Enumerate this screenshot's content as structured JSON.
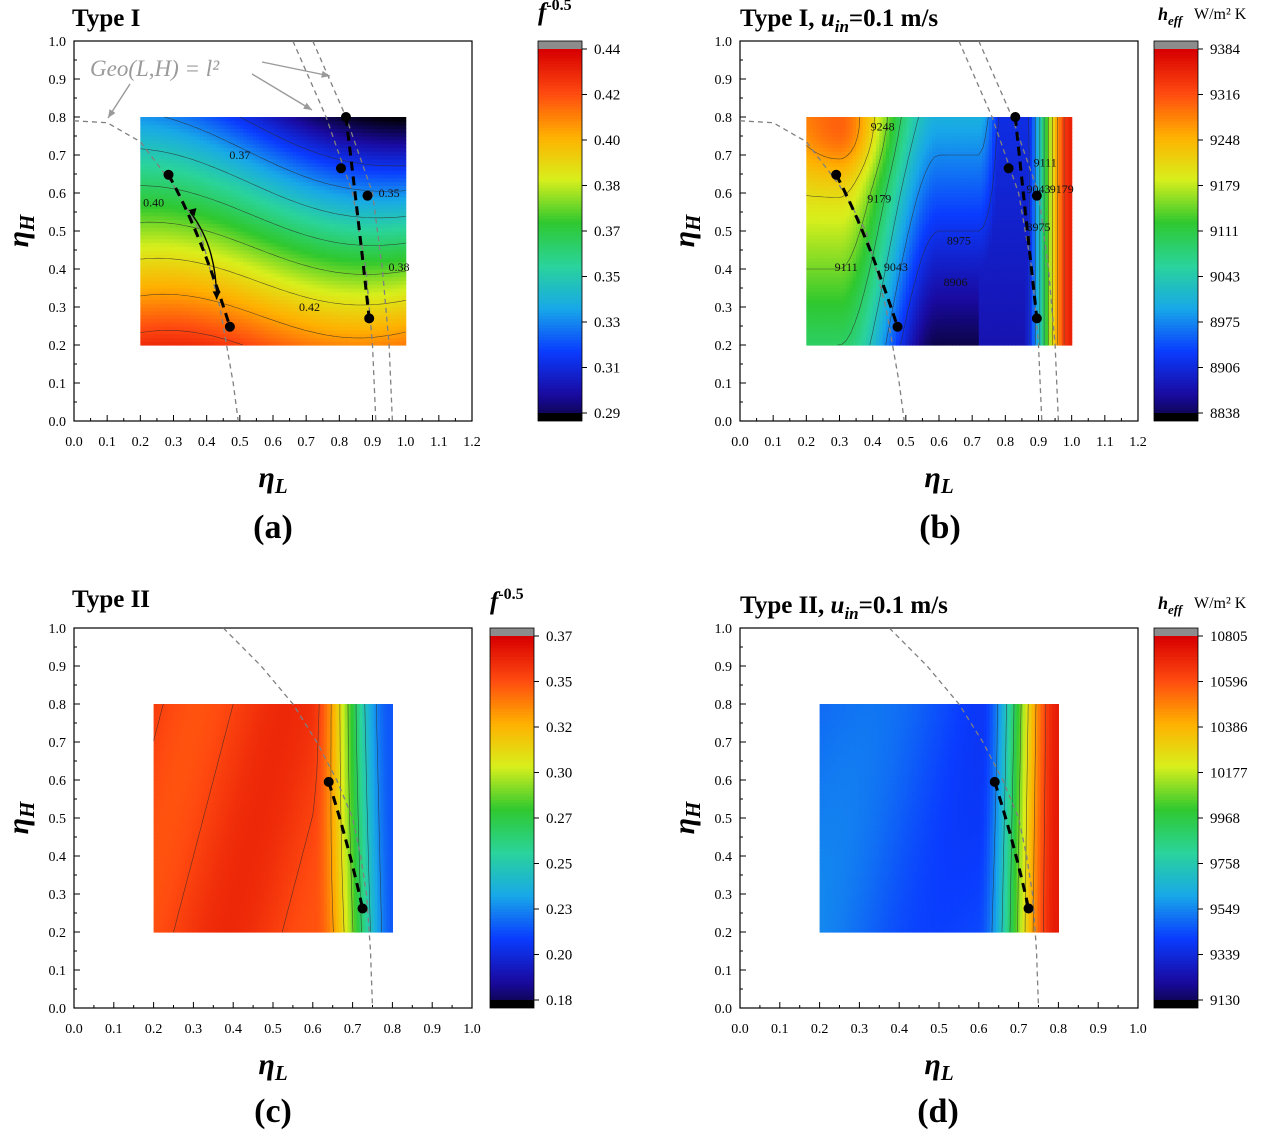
{
  "chart_data": [
    {
      "panel": "a",
      "type": "heatmap",
      "title": "Type I",
      "title_parts": [
        "Type I"
      ],
      "xlabel": "η_L",
      "ylabel": "η_H",
      "xlim": [
        0,
        1.2
      ],
      "ylim": [
        0,
        1.0
      ],
      "x_ticks": [
        "0.0",
        "0.1",
        "0.2",
        "0.3",
        "0.4",
        "0.5",
        "0.6",
        "0.7",
        "0.8",
        "0.9",
        "1.0",
        "1.1",
        "1.2"
      ],
      "y_ticks": [
        "0.0",
        "0.1",
        "0.2",
        "0.3",
        "0.4",
        "0.5",
        "0.6",
        "0.7",
        "0.8",
        "0.9",
        "1.0"
      ],
      "data_region": {
        "x": [
          0.2,
          1.0
        ],
        "y": [
          0.2,
          0.8
        ]
      },
      "colorbar": {
        "label": "f",
        "label_sup": "-0.5",
        "ticks": [
          "0.44",
          "0.42",
          "0.40",
          "0.38",
          "0.37",
          "0.35",
          "0.33",
          "0.31",
          "0.29"
        ],
        "range": [
          0.29,
          0.44
        ]
      },
      "contour_labels": [
        {
          "text": "0.37",
          "x": 0.5,
          "y": 0.69
        },
        {
          "text": "0.35",
          "x": 0.95,
          "y": 0.59
        },
        {
          "text": "0.40",
          "x": 0.24,
          "y": 0.565
        },
        {
          "text": "0.38",
          "x": 0.98,
          "y": 0.395
        },
        {
          "text": "0.42",
          "x": 0.71,
          "y": 0.29
        }
      ],
      "annotation": {
        "text": "Geo(L,H) = l²"
      },
      "geo_curves": [
        {
          "pts": [
            [
              0,
              0.79
            ],
            [
              0.1,
              0.785
            ],
            [
              0.2,
              0.735
            ],
            [
              0.3,
              0.62
            ],
            [
              0.38,
              0.5
            ],
            [
              0.44,
              0.3
            ],
            [
              0.48,
              0.1
            ],
            [
              0.495,
              0
            ]
          ]
        },
        {
          "pts": [
            [
              0.66,
              1.0
            ],
            [
              0.76,
              0.8
            ],
            [
              0.84,
              0.6
            ],
            [
              0.88,
              0.4
            ],
            [
              0.9,
              0.2
            ],
            [
              0.91,
              0
            ]
          ]
        },
        {
          "pts": [
            [
              0.72,
              1.0
            ],
            [
              0.82,
              0.8
            ],
            [
              0.9,
              0.6
            ],
            [
              0.93,
              0.4
            ],
            [
              0.95,
              0.2
            ],
            [
              0.96,
              0
            ]
          ]
        }
      ],
      "optimal_paths": [
        [
          [
            0.285,
            0.648
          ],
          [
            0.38,
            0.5
          ],
          [
            0.47,
            0.248
          ]
        ],
        [
          [
            0.82,
            0.8
          ],
          [
            0.855,
            0.55
          ],
          [
            0.89,
            0.27
          ]
        ]
      ],
      "points": [
        [
          0.285,
          0.648
        ],
        [
          0.47,
          0.248
        ],
        [
          0.82,
          0.8
        ],
        [
          0.805,
          0.665
        ],
        [
          0.885,
          0.593
        ],
        [
          0.89,
          0.27
        ]
      ],
      "field": {
        "kind": "f_type1"
      }
    },
    {
      "panel": "b",
      "type": "heatmap",
      "title": "Type I, u_in=0.1 m/s",
      "title_parts": [
        "Type I, ",
        "u",
        "in",
        "=0.1 m/s"
      ],
      "xlabel": "η_L",
      "ylabel": "η_H",
      "xlim": [
        0,
        1.2
      ],
      "ylim": [
        0,
        1.0
      ],
      "x_ticks": [
        "0.0",
        "0.1",
        "0.2",
        "0.3",
        "0.4",
        "0.5",
        "0.6",
        "0.7",
        "0.8",
        "0.9",
        "1.0",
        "1.1",
        "1.2"
      ],
      "y_ticks": [
        "0.0",
        "0.1",
        "0.2",
        "0.3",
        "0.4",
        "0.5",
        "0.6",
        "0.7",
        "0.8",
        "0.9",
        "1.0"
      ],
      "data_region": {
        "x": [
          0.2,
          1.0
        ],
        "y": [
          0.2,
          0.8
        ]
      },
      "colorbar": {
        "label": "h",
        "label_sub": "eff",
        "units": "W/m² K",
        "ticks": [
          "9384",
          "9316",
          "9248",
          "9179",
          "9111",
          "9043",
          "8975",
          "8906",
          "8838"
        ],
        "range": [
          8838,
          9384
        ]
      },
      "contour_labels": [
        {
          "text": "9248",
          "x": 0.43,
          "y": 0.765
        },
        {
          "text": "9179",
          "x": 0.42,
          "y": 0.575
        },
        {
          "text": "8975",
          "x": 0.66,
          "y": 0.465
        },
        {
          "text": "9111",
          "x": 0.32,
          "y": 0.395
        },
        {
          "text": "9043",
          "x": 0.47,
          "y": 0.395
        },
        {
          "text": "8906",
          "x": 0.65,
          "y": 0.355
        },
        {
          "text": "9111",
          "x": 0.92,
          "y": 0.67
        },
        {
          "text": "9043",
          "x": 0.9,
          "y": 0.6
        },
        {
          "text": "9179",
          "x": 0.97,
          "y": 0.6
        },
        {
          "text": "8975",
          "x": 0.9,
          "y": 0.5
        }
      ],
      "geo_curves": [
        {
          "pts": [
            [
              0,
              0.79
            ],
            [
              0.1,
              0.785
            ],
            [
              0.2,
              0.735
            ],
            [
              0.3,
              0.62
            ],
            [
              0.38,
              0.5
            ],
            [
              0.44,
              0.3
            ],
            [
              0.48,
              0.1
            ],
            [
              0.495,
              0
            ]
          ]
        },
        {
          "pts": [
            [
              0.66,
              1.0
            ],
            [
              0.76,
              0.8
            ],
            [
              0.84,
              0.6
            ],
            [
              0.88,
              0.4
            ],
            [
              0.9,
              0.2
            ],
            [
              0.91,
              0
            ]
          ]
        },
        {
          "pts": [
            [
              0.72,
              1.0
            ],
            [
              0.82,
              0.8
            ],
            [
              0.9,
              0.6
            ],
            [
              0.93,
              0.4
            ],
            [
              0.95,
              0.2
            ],
            [
              0.96,
              0
            ]
          ]
        }
      ],
      "optimal_paths": [
        [
          [
            0.29,
            0.648
          ],
          [
            0.38,
            0.5
          ],
          [
            0.475,
            0.248
          ]
        ],
        [
          [
            0.83,
            0.8
          ],
          [
            0.86,
            0.55
          ],
          [
            0.895,
            0.27
          ]
        ]
      ],
      "points": [
        [
          0.29,
          0.648
        ],
        [
          0.475,
          0.248
        ],
        [
          0.83,
          0.8
        ],
        [
          0.81,
          0.665
        ],
        [
          0.895,
          0.593
        ],
        [
          0.895,
          0.27
        ]
      ],
      "field": {
        "kind": "h_type1"
      }
    },
    {
      "panel": "c",
      "type": "heatmap",
      "title": "Type II",
      "title_parts": [
        "Type II"
      ],
      "xlabel": "η_L",
      "ylabel": "η_H",
      "xlim": [
        0,
        1.0
      ],
      "ylim": [
        0,
        1.0
      ],
      "x_ticks": [
        "0.0",
        "0.1",
        "0.2",
        "0.3",
        "0.4",
        "0.5",
        "0.6",
        "0.7",
        "0.8",
        "0.9",
        "1.0"
      ],
      "y_ticks": [
        "0.0",
        "0.1",
        "0.2",
        "0.3",
        "0.4",
        "0.5",
        "0.6",
        "0.7",
        "0.8",
        "0.9",
        "1.0"
      ],
      "data_region": {
        "x": [
          0.2,
          0.8
        ],
        "y": [
          0.2,
          0.8
        ]
      },
      "colorbar": {
        "label": "f",
        "label_sup": "-0.5",
        "ticks": [
          "0.37",
          "0.35",
          "0.32",
          "0.30",
          "0.27",
          "0.25",
          "0.23",
          "0.20",
          "0.18"
        ],
        "range": [
          0.18,
          0.37
        ]
      },
      "contour_labels": [],
      "geo_curves": [
        {
          "pts": [
            [
              0.375,
              1.0
            ],
            [
              0.47,
              0.9
            ],
            [
              0.55,
              0.8
            ],
            [
              0.61,
              0.7
            ],
            [
              0.66,
              0.6
            ],
            [
              0.7,
              0.5
            ],
            [
              0.72,
              0.4
            ],
            [
              0.735,
              0.3
            ],
            [
              0.745,
              0.15
            ],
            [
              0.75,
              0
            ]
          ]
        }
      ],
      "optimal_paths": [
        [
          [
            0.64,
            0.595
          ],
          [
            0.69,
            0.43
          ],
          [
            0.725,
            0.262
          ]
        ]
      ],
      "points": [
        [
          0.64,
          0.595
        ],
        [
          0.725,
          0.262
        ]
      ],
      "field": {
        "kind": "f_type2"
      }
    },
    {
      "panel": "d",
      "type": "heatmap",
      "title": "Type II, u_in=0.1 m/s",
      "title_parts": [
        "Type II, ",
        "u",
        "in",
        "=0.1 m/s"
      ],
      "xlabel": "η_L",
      "ylabel": "η_H",
      "xlim": [
        0,
        1.0
      ],
      "ylim": [
        0,
        1.0
      ],
      "x_ticks": [
        "0.0",
        "0.1",
        "0.2",
        "0.3",
        "0.4",
        "0.5",
        "0.6",
        "0.7",
        "0.8",
        "0.9",
        "1.0"
      ],
      "y_ticks": [
        "0.0",
        "0.1",
        "0.2",
        "0.3",
        "0.4",
        "0.5",
        "0.6",
        "0.7",
        "0.8",
        "0.9",
        "1.0"
      ],
      "data_region": {
        "x": [
          0.2,
          0.8
        ],
        "y": [
          0.2,
          0.8
        ]
      },
      "colorbar": {
        "label": "h",
        "label_sub": "eff",
        "units": "W/m² K",
        "ticks": [
          "10805",
          "10596",
          "10386",
          "10177",
          "9968",
          "9758",
          "9549",
          "9339",
          "9130"
        ],
        "range": [
          9130,
          10805
        ]
      },
      "contour_labels": [],
      "geo_curves": [
        {
          "pts": [
            [
              0.375,
              1.0
            ],
            [
              0.47,
              0.9
            ],
            [
              0.55,
              0.8
            ],
            [
              0.61,
              0.7
            ],
            [
              0.66,
              0.6
            ],
            [
              0.7,
              0.5
            ],
            [
              0.72,
              0.4
            ],
            [
              0.735,
              0.3
            ],
            [
              0.745,
              0.15
            ],
            [
              0.75,
              0
            ]
          ]
        }
      ],
      "optimal_paths": [
        [
          [
            0.64,
            0.595
          ],
          [
            0.69,
            0.43
          ],
          [
            0.725,
            0.262
          ]
        ]
      ],
      "points": [
        [
          0.64,
          0.595
        ],
        [
          0.725,
          0.262
        ]
      ],
      "field": {
        "kind": "h_type2"
      }
    }
  ],
  "panel_labels": [
    "(a)",
    "(b)",
    "(c)",
    "(d)"
  ],
  "colors": {
    "scale": [
      "#000000",
      "#1a0aa0",
      "#0a3cff",
      "#18a8e8",
      "#2ad49a",
      "#2fc82f",
      "#d8ef1c",
      "#ffb000",
      "#ff4a10",
      "#d80000"
    ],
    "geo_curve": "#808080",
    "path": "#000000",
    "background": "#ffffff",
    "colorbar_top": "#8c8c8c"
  }
}
